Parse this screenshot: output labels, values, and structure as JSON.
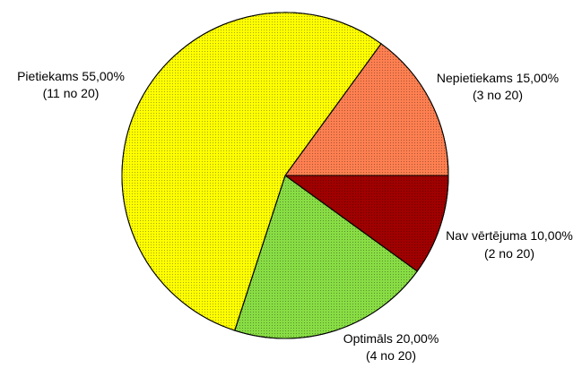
{
  "chart_data": {
    "type": "pie",
    "title": "",
    "legend": "none",
    "slices": [
      {
        "label": "Nepietiekams 15,00%",
        "sub": "(3 no 20)",
        "value": 15.0,
        "count": 3,
        "total": 20,
        "color": "#ff7f50"
      },
      {
        "label": "Nav vērtējuma 10,00%",
        "sub": "(2 no 20)",
        "value": 10.0,
        "count": 2,
        "total": 20,
        "color": "#a00000"
      },
      {
        "label": "Optimāls 20,00%",
        "sub": "(4 no 20)",
        "value": 20.0,
        "count": 4,
        "total": 20,
        "color": "#88dd44"
      },
      {
        "label": "Pietiekams 55,00%",
        "sub": "(11 no 20)",
        "value": 55.0,
        "count": 11,
        "total": 20,
        "color": "#ffff00"
      }
    ]
  }
}
